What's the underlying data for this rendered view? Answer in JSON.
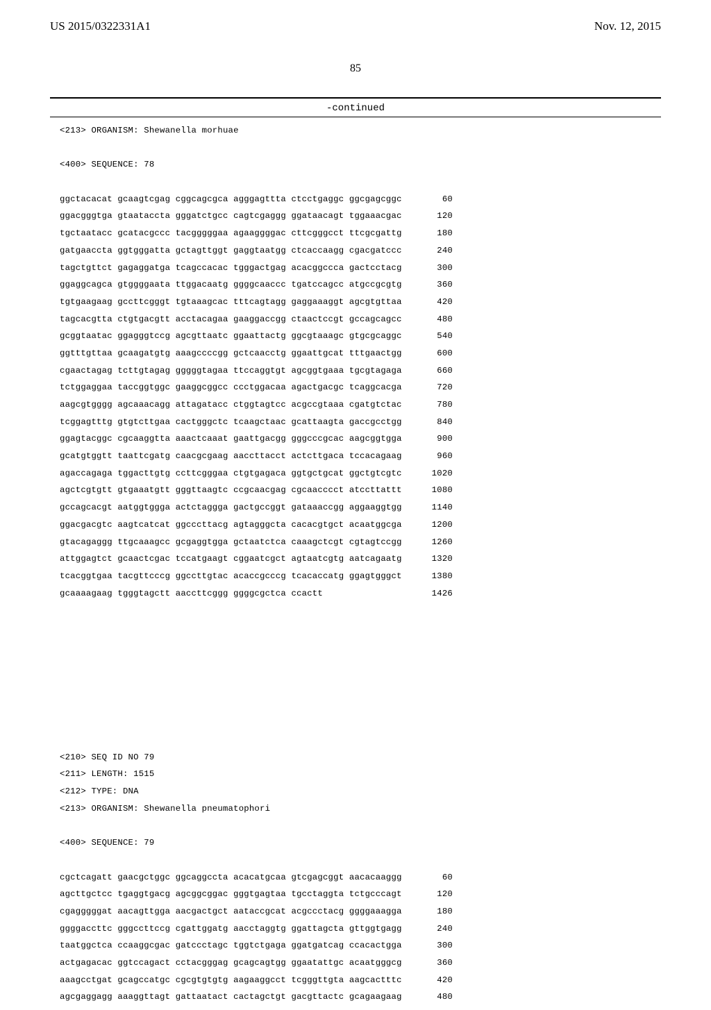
{
  "header": {
    "pub_number": "US 2015/0322331A1",
    "date": "Nov. 12, 2015",
    "page_number": "85",
    "continued": "-continued"
  },
  "seq1": {
    "organism_line": "<213> ORGANISM: Shewanella morhuae",
    "sequence_line": "<400> SEQUENCE: 78",
    "rows": [
      {
        "g": "ggctacacat gcaagtcgag cggcagcgca agggagttta ctcctgaggc ggcgagcggc",
        "n": "60"
      },
      {
        "g": "ggacgggtga gtaataccta gggatctgcc cagtcgaggg ggataacagt tggaaacgac",
        "n": "120"
      },
      {
        "g": "tgctaatacc gcatacgccc tacgggggaa agaaggggac cttcgggcct ttcgcgattg",
        "n": "180"
      },
      {
        "g": "gatgaaccta ggtgggatta gctagttggt gaggtaatgg ctcaccaagg cgacgatccc",
        "n": "240"
      },
      {
        "g": "tagctgttct gagaggatga tcagccacac tgggactgag acacggccca gactcctacg",
        "n": "300"
      },
      {
        "g": "ggaggcagca gtggggaata ttggacaatg ggggcaaccc tgatccagcc atgccgcgtg",
        "n": "360"
      },
      {
        "g": "tgtgaagaag gccttcgggt tgtaaagcac tttcagtagg gaggaaaggt agcgtgttaa",
        "n": "420"
      },
      {
        "g": "tagcacgtta ctgtgacgtt acctacagaa gaaggaccgg ctaactccgt gccagcagcc",
        "n": "480"
      },
      {
        "g": "gcggtaatac ggagggtccg agcgttaatc ggaattactg ggcgtaaagc gtgcgcaggc",
        "n": "540"
      },
      {
        "g": "ggtttgttaa gcaagatgtg aaagccccgg gctcaacctg ggaattgcat tttgaactgg",
        "n": "600"
      },
      {
        "g": "cgaactagag tcttgtagag gggggtagaa ttccaggtgt agcggtgaaa tgcgtagaga",
        "n": "660"
      },
      {
        "g": "tctggaggaa taccggtggc gaaggcggcc ccctggacaa agactgacgc tcaggcacga",
        "n": "720"
      },
      {
        "g": "aagcgtgggg agcaaacagg attagatacc ctggtagtcc acgccgtaaa cgatgtctac",
        "n": "780"
      },
      {
        "g": "tcggagtttg gtgtcttgaa cactgggctc tcaagctaac gcattaagta gaccgcctgg",
        "n": "840"
      },
      {
        "g": "ggagtacggc cgcaaggtta aaactcaaat gaattgacgg gggcccgcac aagcggtgga",
        "n": "900"
      },
      {
        "g": "gcatgtggtt taattcgatg caacgcgaag aaccttacct actcttgaca tccacagaag",
        "n": "960"
      },
      {
        "g": "agaccagaga tggacttgtg ccttcgggaa ctgtgagaca ggtgctgcat ggctgtcgtc",
        "n": "1020"
      },
      {
        "g": "agctcgtgtt gtgaaatgtt gggttaagtc ccgcaacgag cgcaacccct atccttattt",
        "n": "1080"
      },
      {
        "g": "gccagcacgt aatggtggga actctaggga gactgccggt gataaaccgg aggaaggtgg",
        "n": "1140"
      },
      {
        "g": "ggacgacgtc aagtcatcat ggcccttacg agtagggcta cacacgtgct acaatggcga",
        "n": "1200"
      },
      {
        "g": "gtacagaggg ttgcaaagcc gcgaggtgga gctaatctca caaagctcgt cgtagtccgg",
        "n": "1260"
      },
      {
        "g": "attggagtct gcaactcgac tccatgaagt cggaatcgct agtaatcgtg aatcagaatg",
        "n": "1320"
      },
      {
        "g": "tcacggtgaa tacgttcccg ggccttgtac acaccgcccg tcacaccatg ggagtgggct",
        "n": "1380"
      },
      {
        "g": "gcaaaagaag tgggtagctt aaccttcggg ggggcgctca ccactt",
        "n": "1426"
      }
    ]
  },
  "seq2": {
    "id_line": "<210> SEQ ID NO 79",
    "length_line": "<211> LENGTH: 1515",
    "type_line": "<212> TYPE: DNA",
    "organism_line": "<213> ORGANISM: Shewanella pneumatophori",
    "sequence_line": "<400> SEQUENCE: 79",
    "rows": [
      {
        "g": "cgctcagatt gaacgctggc ggcaggccta acacatgcaa gtcgagcggt aacacaaggg",
        "n": "60"
      },
      {
        "g": "agcttgctcc tgaggtgacg agcggcggac gggtgagtaa tgcctaggta tctgcccagt",
        "n": "120"
      },
      {
        "g": "cgagggggat aacagttgga aacgactgct aataccgcat acgccctacg ggggaaagga",
        "n": "180"
      },
      {
        "g": "ggggaccttc gggccttccg cgattggatg aacctaggtg ggattagcta gttggtgagg",
        "n": "240"
      },
      {
        "g": "taatggctca ccaaggcgac gatccctagc tggtctgaga ggatgatcag ccacactgga",
        "n": "300"
      },
      {
        "g": "actgagacac ggtccagact cctacgggag gcagcagtgg ggaatattgc acaatgggcg",
        "n": "360"
      },
      {
        "g": "aaagcctgat gcagccatgc cgcgtgtgtg aagaaggcct tcgggttgta aagcactttc",
        "n": "420"
      },
      {
        "g": "agcgaggagg aaaggttagt gattaatact cactagctgt gacgttactc gcagaagaag",
        "n": "480"
      }
    ]
  }
}
